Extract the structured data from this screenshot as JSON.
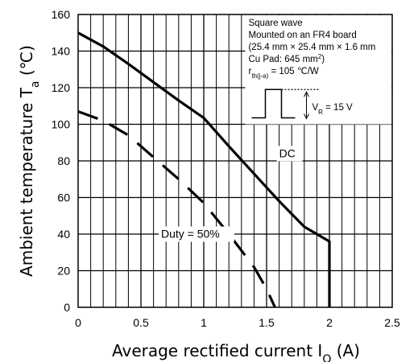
{
  "chart_data": {
    "type": "line",
    "title": "",
    "xlabel": "Average rectified current I",
    "xlabel_sub": "O",
    "xlabel_unit": " (A)",
    "ylabel": "Ambient temperature T",
    "ylabel_sub": "a",
    "ylabel_unit": "  (℃)",
    "xlim": [
      0,
      2.5
    ],
    "ylim": [
      0,
      160
    ],
    "xticks": [
      "0",
      "0.5",
      "1",
      "1.5",
      "2",
      "2.5"
    ],
    "yticks": [
      "0",
      "20",
      "40",
      "60",
      "80",
      "100",
      "120",
      "140",
      "160"
    ],
    "grid": true,
    "series": [
      {
        "name": "DC",
        "style": "solid",
        "x": [
          0,
          0.2,
          0.4,
          0.6,
          0.8,
          1.0,
          1.2,
          1.4,
          1.6,
          1.8,
          2.0,
          2.0
        ],
        "y": [
          150,
          142.5,
          133,
          123,
          113,
          103.5,
          88,
          73,
          58,
          44,
          36,
          0
        ]
      },
      {
        "name": "Duty = 50%",
        "style": "dashed",
        "x": [
          0,
          0.2,
          0.4,
          0.6,
          0.8,
          1.0,
          1.2,
          1.4,
          1.5,
          1.6
        ],
        "y": [
          107,
          102,
          94,
          82,
          70,
          57,
          40,
          22,
          10,
          -5
        ]
      }
    ],
    "annotations": {
      "box_lines": [
        {
          "text": "Square wave"
        },
        {
          "text": "Mounted on an FR4 board"
        },
        {
          "text": "(25.4 mm × 25.4 mm × 1.6 mm"
        },
        {
          "text": "Cu Pad: 645 mm",
          "sup": "2",
          "tail": ")"
        },
        {
          "text": "r",
          "sub": "th(j-a)",
          "tail": " = 105 ℃/W"
        }
      ],
      "vr_label": "V",
      "vr_sub": "R",
      "vr_tail": " = 15 V"
    }
  }
}
